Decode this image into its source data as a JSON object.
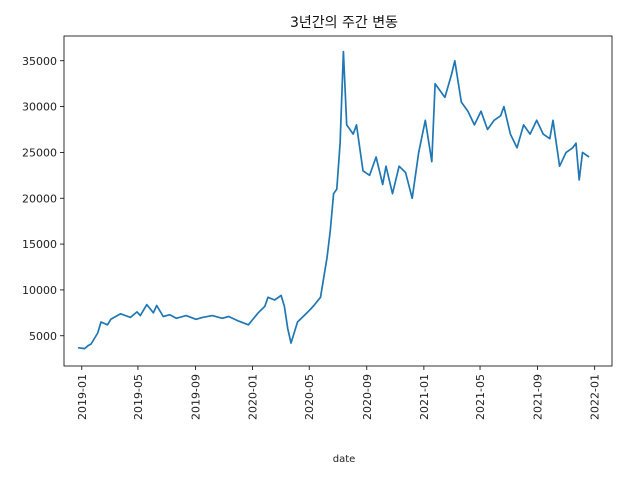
{
  "chart_data": {
    "type": "line",
    "title": "3년간의 주간 변동",
    "xlabel": "date",
    "ylabel": "",
    "xlim": [
      "2018-11-24",
      "2022-02-07"
    ],
    "ylim": [
      1700,
      37700
    ],
    "x_ticks": [
      "2019-01",
      "2019-05",
      "2019-09",
      "2020-01",
      "2020-05",
      "2020-09",
      "2021-01",
      "2021-05",
      "2021-09",
      "2022-01"
    ],
    "y_ticks": [
      5000,
      10000,
      15000,
      20000,
      25000,
      30000,
      35000
    ],
    "grid": false,
    "legend": "none",
    "line_color": "#1f77b4",
    "series": [
      {
        "x": [
          "2018-12-24",
          "2019-01-07",
          "2019-01-14",
          "2019-01-21",
          "2019-02-04",
          "2019-02-11",
          "2019-02-25",
          "2019-03-04",
          "2019-03-25",
          "2019-04-15",
          "2019-04-29",
          "2019-05-06",
          "2019-05-20",
          "2019-06-03",
          "2019-06-10",
          "2019-06-24",
          "2019-07-08",
          "2019-07-22",
          "2019-08-12",
          "2019-09-02",
          "2019-09-16",
          "2019-10-07",
          "2019-10-28",
          "2019-11-11",
          "2019-12-02",
          "2019-12-23",
          "2020-01-13",
          "2020-01-27",
          "2020-02-03",
          "2020-02-17",
          "2020-03-02",
          "2020-03-09",
          "2020-03-16",
          "2020-03-23",
          "2020-04-06",
          "2020-04-20",
          "2020-05-04",
          "2020-05-11",
          "2020-05-25",
          "2020-06-08",
          "2020-06-15",
          "2020-06-22",
          "2020-06-29",
          "2020-07-06",
          "2020-07-13",
          "2020-07-20",
          "2020-08-03",
          "2020-08-10",
          "2020-08-24",
          "2020-09-07",
          "2020-09-21",
          "2020-10-05",
          "2020-10-12",
          "2020-10-26",
          "2020-11-09",
          "2020-11-23",
          "2020-12-07",
          "2020-12-21",
          "2021-01-04",
          "2021-01-18",
          "2021-01-25",
          "2021-02-15",
          "2021-03-01",
          "2021-03-08",
          "2021-03-22",
          "2021-04-05",
          "2021-04-19",
          "2021-05-03",
          "2021-05-17",
          "2021-05-31",
          "2021-06-14",
          "2021-06-21",
          "2021-07-05",
          "2021-07-19",
          "2021-08-02",
          "2021-08-16",
          "2021-08-30",
          "2021-09-13",
          "2021-09-27",
          "2021-10-04",
          "2021-10-18",
          "2021-11-01",
          "2021-11-15",
          "2021-11-22",
          "2021-11-29",
          "2021-12-06",
          "2021-12-20"
        ],
        "values": [
          3700,
          3600,
          3900,
          4100,
          5300,
          6500,
          6200,
          6800,
          7400,
          7000,
          7600,
          7200,
          8400,
          7500,
          8300,
          7100,
          7300,
          6900,
          7200,
          6800,
          7000,
          7200,
          6900,
          7100,
          6600,
          6200,
          7500,
          8200,
          9200,
          8900,
          9400,
          8200,
          5800,
          4200,
          6500,
          7200,
          7900,
          8300,
          9200,
          13500,
          16500,
          20500,
          21000,
          26000,
          36000,
          28000,
          27000,
          28000,
          23000,
          22500,
          24500,
          21500,
          23500,
          20500,
          23500,
          22800,
          20000,
          25000,
          28500,
          24000,
          32500,
          31000,
          33500,
          35000,
          30500,
          29500,
          28000,
          29500,
          27500,
          28500,
          29000,
          30000,
          27000,
          25500,
          28000,
          27000,
          28500,
          27000,
          26500,
          28500,
          23500,
          25000,
          25500,
          26000,
          22000,
          25000,
          24500
        ]
      }
    ]
  }
}
